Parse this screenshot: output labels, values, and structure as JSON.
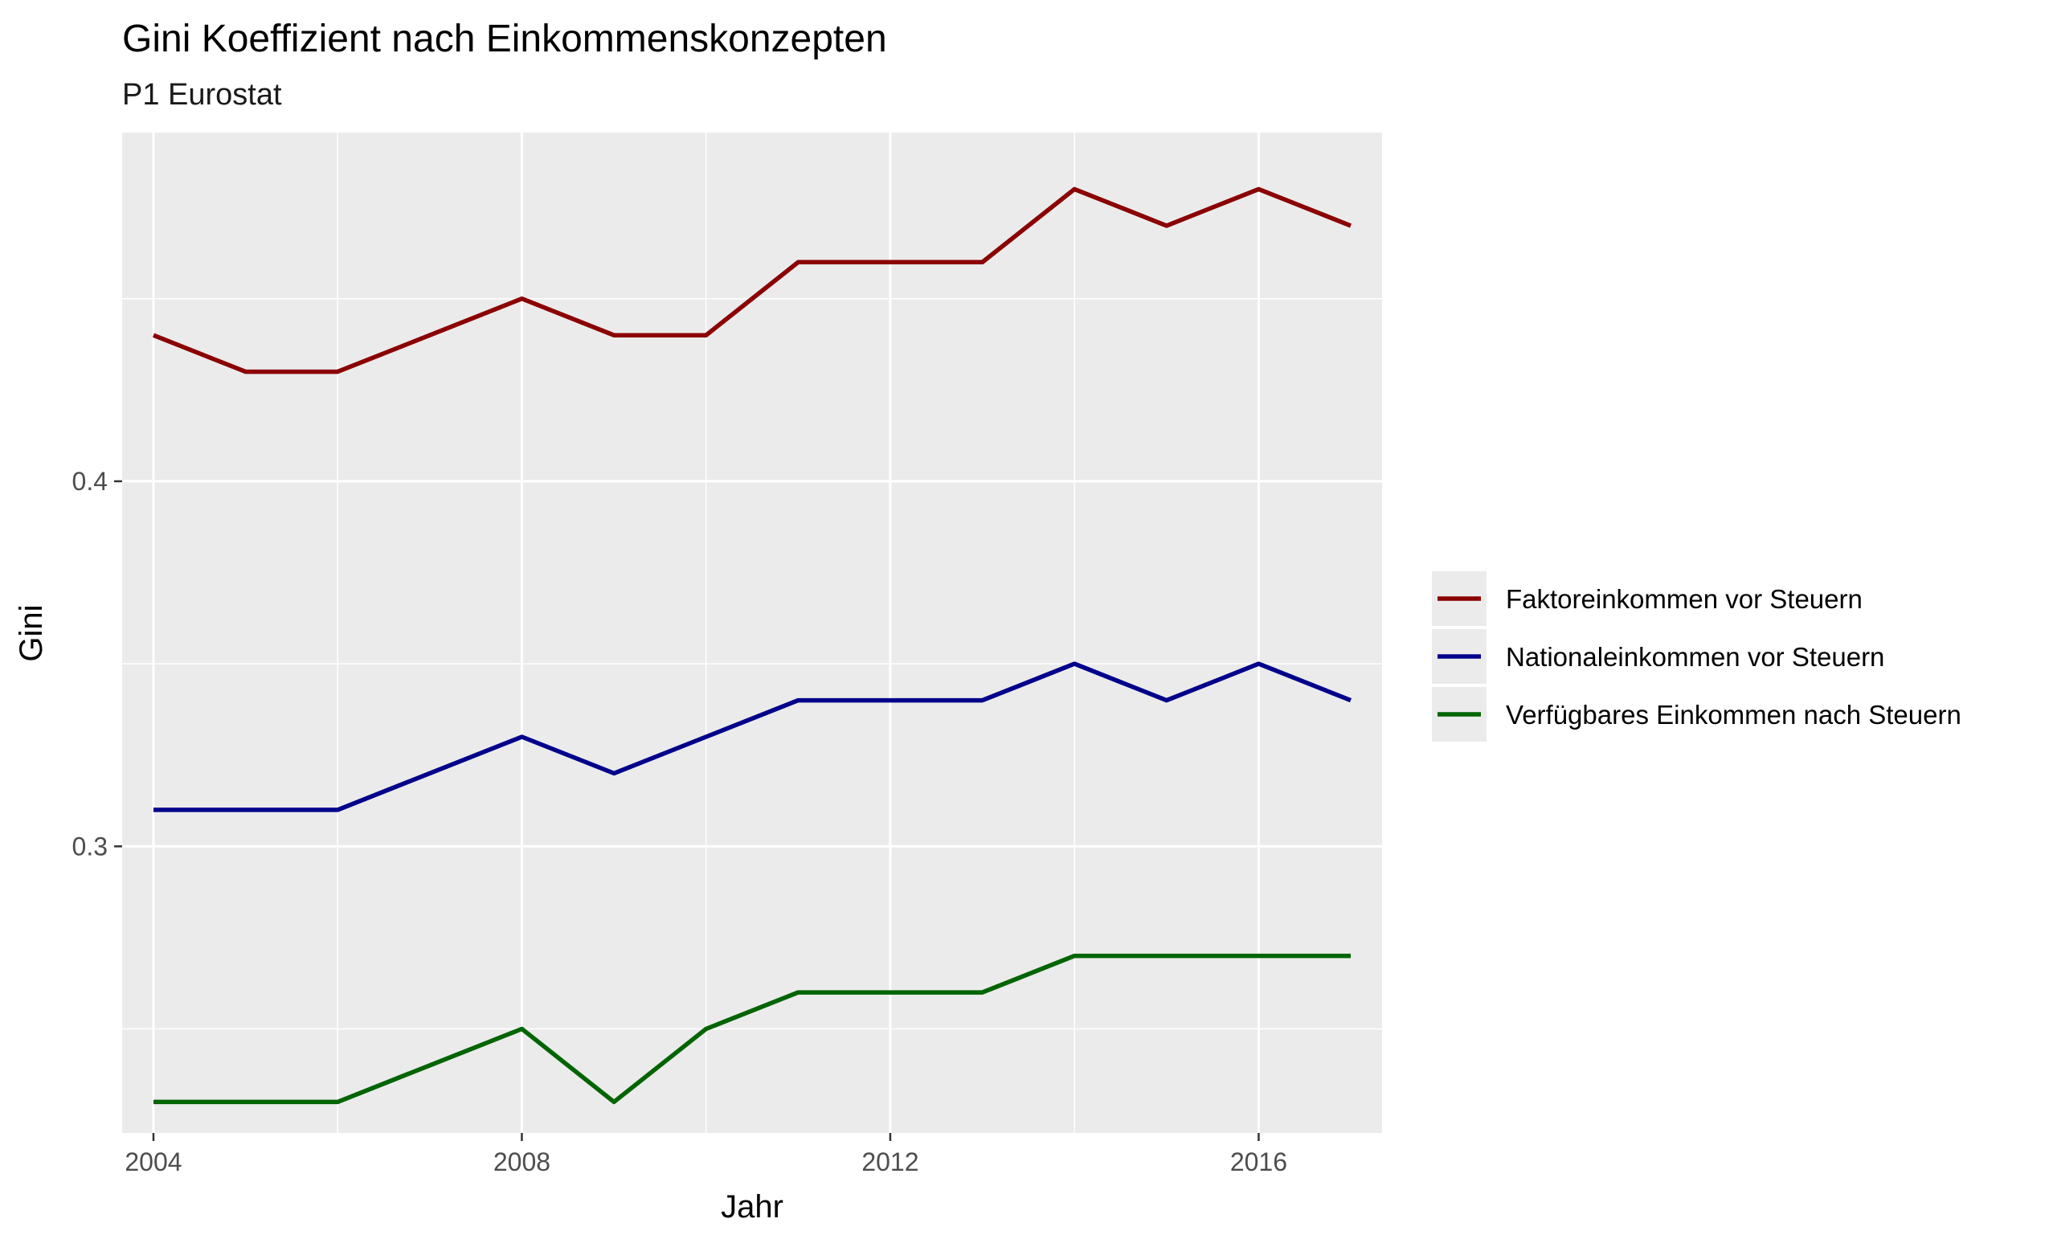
{
  "chart_data": {
    "type": "line",
    "title": "Gini Koeffizient nach Einkommenskonzepten",
    "subtitle": "P1 Eurostat",
    "xlabel": "Jahr",
    "ylabel": "Gini",
    "x": [
      2004,
      2005,
      2006,
      2007,
      2008,
      2009,
      2010,
      2011,
      2012,
      2013,
      2014,
      2015,
      2016,
      2017
    ],
    "xlim": [
      2003.66,
      2017.34
    ],
    "ylim": [
      0.2215,
      0.4955
    ],
    "x_ticks": [
      2004,
      2008,
      2012,
      2016
    ],
    "x_tick_labels": [
      "2004",
      "2008",
      "2012",
      "2016"
    ],
    "x_minor_ticks": [
      2006,
      2010,
      2014
    ],
    "y_ticks": [
      0.3,
      0.4
    ],
    "y_tick_labels": [
      "0.3",
      "0.4"
    ],
    "y_minor_ticks": [
      0.25,
      0.35,
      0.45
    ],
    "grid": true,
    "legend_position": "right",
    "series": [
      {
        "name": "Faktoreinkommen vor Steuern",
        "color": "#8B0000",
        "values": [
          0.44,
          0.43,
          0.43,
          0.44,
          0.45,
          0.44,
          0.44,
          0.46,
          0.46,
          0.46,
          0.48,
          0.47,
          0.48,
          0.47
        ]
      },
      {
        "name": "Nationaleinkommen vor Steuern",
        "color": "#00008B",
        "values": [
          0.31,
          0.31,
          0.31,
          0.32,
          0.33,
          0.32,
          0.33,
          0.34,
          0.34,
          0.34,
          0.35,
          0.34,
          0.35,
          0.34
        ]
      },
      {
        "name": "Verfügbares Einkommen nach Steuern",
        "color": "#006400",
        "values": [
          0.23,
          0.23,
          0.23,
          0.24,
          0.25,
          0.23,
          0.25,
          0.26,
          0.26,
          0.26,
          0.27,
          0.27,
          0.27,
          0.27
        ]
      }
    ]
  }
}
